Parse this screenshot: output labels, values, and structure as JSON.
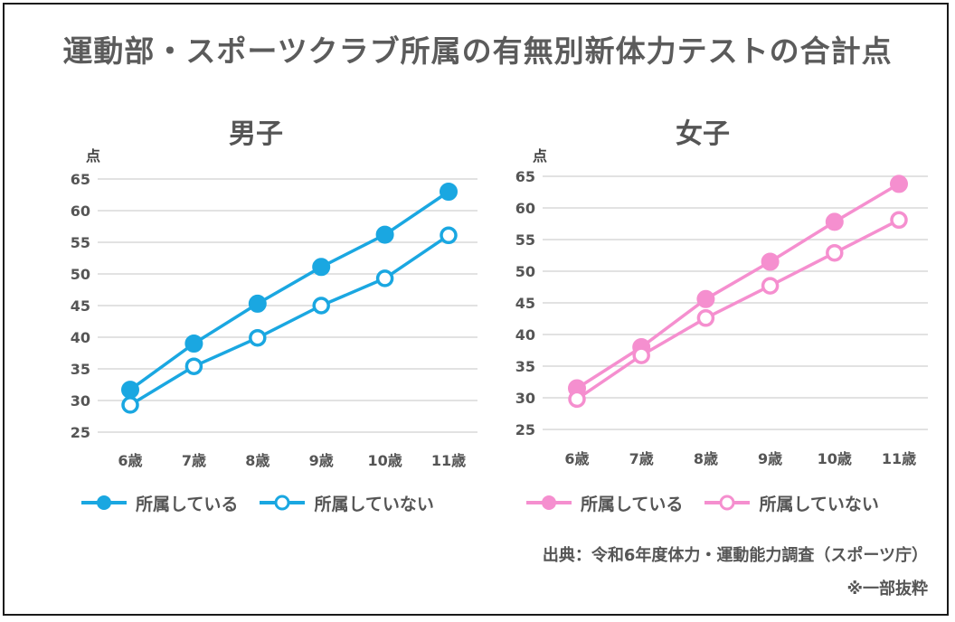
{
  "title": "運動部・スポーツクラブ所属の有無別新体力テストの合計点",
  "source": "出典：令和6年度体力・運動能力調査（スポーツ庁）",
  "note": "※一部抜粋",
  "chart_data": [
    {
      "type": "line",
      "title": "男子",
      "ylabel": "点",
      "categories": [
        "6歳",
        "7歳",
        "8歳",
        "9歳",
        "10歳",
        "11歳"
      ],
      "ylim": [
        25,
        65
      ],
      "yticks": [
        25,
        30,
        35,
        40,
        45,
        50,
        55,
        60,
        65
      ],
      "grid": true,
      "legend": "bottom-left",
      "color": "#1aa7e1",
      "series": [
        {
          "name": "所属している",
          "marker": "filled",
          "values": [
            31.7,
            39.0,
            45.3,
            51.1,
            56.2,
            63.0
          ]
        },
        {
          "name": "所属していない",
          "marker": "hollow",
          "values": [
            29.3,
            35.4,
            39.9,
            45.0,
            49.3,
            56.1
          ]
        }
      ]
    },
    {
      "type": "line",
      "title": "女子",
      "ylabel": "点",
      "categories": [
        "6歳",
        "7歳",
        "8歳",
        "9歳",
        "10歳",
        "11歳"
      ],
      "ylim": [
        25,
        65
      ],
      "yticks": [
        25,
        30,
        35,
        40,
        45,
        50,
        55,
        60,
        65
      ],
      "grid": true,
      "legend": "bottom-left",
      "color": "#f58fcf",
      "series": [
        {
          "name": "所属している",
          "marker": "filled",
          "values": [
            31.5,
            38.0,
            45.6,
            51.5,
            57.8,
            63.8
          ]
        },
        {
          "name": "所属していない",
          "marker": "hollow",
          "values": [
            29.8,
            36.7,
            42.6,
            47.7,
            52.9,
            58.1
          ]
        }
      ]
    }
  ]
}
